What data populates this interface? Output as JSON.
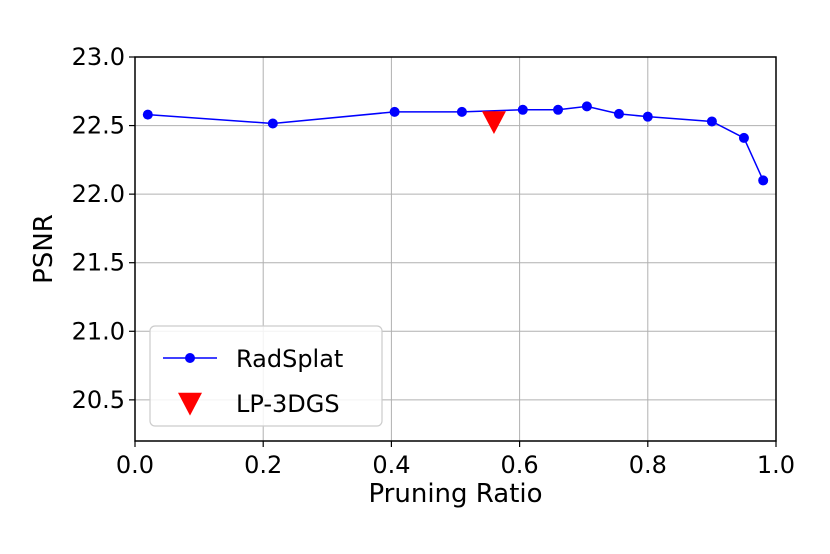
{
  "chart_data": {
    "type": "line",
    "xlabel": "Pruning Ratio",
    "ylabel": "PSNR",
    "xlim": [
      0.0,
      1.0
    ],
    "ylim": [
      20.2,
      23.0
    ],
    "x_ticks": [
      0.0,
      0.2,
      0.4,
      0.6,
      0.8,
      1.0
    ],
    "x_tick_labels": [
      "0.0",
      "0.2",
      "0.4",
      "0.6",
      "0.8",
      "1.0"
    ],
    "y_ticks": [
      20.5,
      21.0,
      21.5,
      22.0,
      22.5,
      23.0
    ],
    "y_tick_labels": [
      "20.5",
      "21.0",
      "21.5",
      "22.0",
      "22.5",
      "23.0"
    ],
    "grid": true,
    "legend_position": "lower-left",
    "series": [
      {
        "name": "RadSplat",
        "color": "#0000ff",
        "marker": "circle",
        "line": true,
        "x": [
          0.02,
          0.215,
          0.405,
          0.51,
          0.605,
          0.66,
          0.705,
          0.755,
          0.8,
          0.9,
          0.95,
          0.98
        ],
        "y": [
          22.58,
          22.515,
          22.6,
          22.6,
          22.615,
          22.615,
          22.64,
          22.585,
          22.565,
          22.53,
          22.41,
          22.1
        ]
      },
      {
        "name": "LP-3DGS",
        "color": "#ff0000",
        "marker": "triangle-down",
        "line": false,
        "x": [
          0.56
        ],
        "y": [
          22.53
        ]
      }
    ]
  }
}
